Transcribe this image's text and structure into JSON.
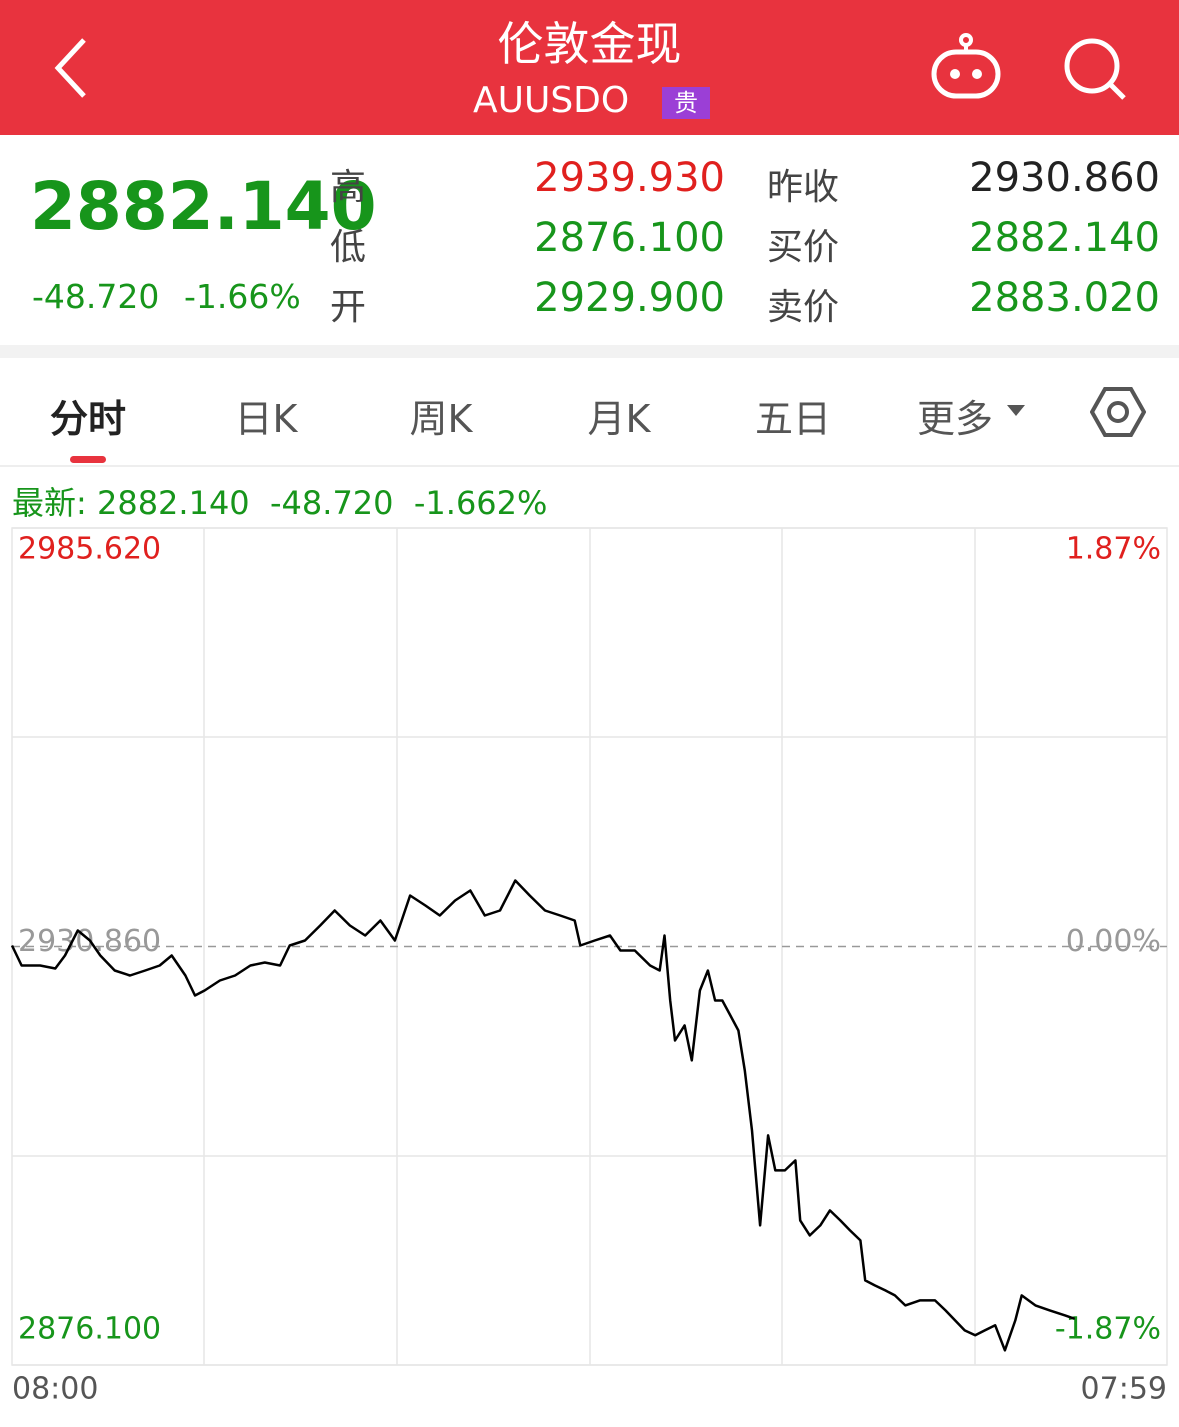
{
  "header": {
    "title": "伦敦金现",
    "code": "AUUSDO",
    "badge": "贵"
  },
  "quote": {
    "price": "2882.140",
    "change": "-48.720",
    "change_percent": "-1.66%",
    "stats": [
      {
        "label": "高",
        "value": "2939.930"
      },
      {
        "label": "低",
        "value": "2876.100"
      },
      {
        "label": "开",
        "value": "2929.900"
      },
      {
        "label": "昨收",
        "value": "2930.860"
      },
      {
        "label": "买价",
        "value": "2882.140"
      },
      {
        "label": "卖价",
        "value": "2883.020"
      }
    ]
  },
  "tabs": [
    "分时",
    "日K",
    "周K",
    "月K",
    "五日",
    "更多"
  ],
  "latest": {
    "label": "最新:",
    "price": "2882.140",
    "change": "-48.720",
    "change_percent": "-1.662%"
  },
  "chart_data": {
    "type": "line",
    "color": "#000000",
    "grid": true,
    "x": [
      0,
      12,
      35,
      54,
      66,
      82,
      97,
      110,
      128,
      147,
      166,
      184,
      199,
      216,
      228,
      240,
      259,
      278,
      297,
      315,
      334,
      346,
      365,
      384,
      402,
      421,
      440,
      459,
      477,
      496,
      515,
      533,
      552,
      571,
      589,
      608,
      627,
      645,
      664,
      683,
      701,
      708,
      726,
      745,
      758,
      776,
      795,
      807,
      813,
      820,
      826,
      838,
      847,
      857,
      867,
      876,
      885,
      895,
      905,
      913,
      922,
      932,
      942,
      951,
      963,
      976,
      982,
      994,
      1007,
      1019,
      1032,
      1044,
      1057,
      1063,
      1075,
      1088,
      1100,
      1113,
      1131,
      1150,
      1163,
      1175,
      1187,
      1200,
      1212,
      1225,
      1237,
      1250,
      1258,
      1275,
      1293,
      1312,
      1324
    ],
    "values": [
      2930.99,
      2928.37,
      2928.37,
      2927.98,
      2929.68,
      2932.95,
      2931.64,
      2929.68,
      2927.72,
      2927.07,
      2927.72,
      2928.37,
      2929.68,
      2927.07,
      2924.45,
      2925.1,
      2926.41,
      2927.07,
      2928.37,
      2928.77,
      2928.37,
      2930.99,
      2931.64,
      2933.61,
      2935.57,
      2933.61,
      2932.3,
      2934.26,
      2931.64,
      2937.53,
      2936.22,
      2934.91,
      2936.88,
      2938.19,
      2934.91,
      2935.57,
      2939.49,
      2937.53,
      2935.57,
      2934.91,
      2934.26,
      2930.99,
      2931.64,
      2932.3,
      2930.34,
      2930.34,
      2928.37,
      2927.72,
      2932.3,
      2923.8,
      2918.56,
      2920.53,
      2915.95,
      2925.1,
      2927.72,
      2923.8,
      2923.8,
      2921.83,
      2919.87,
      2914.64,
      2906.79,
      2894.37,
      2906.14,
      2901.56,
      2901.56,
      2902.87,
      2895.02,
      2893.06,
      2894.37,
      2896.33,
      2895.02,
      2893.71,
      2892.4,
      2887.17,
      2886.52,
      2885.86,
      2885.21,
      2883.9,
      2884.55,
      2884.55,
      2883.25,
      2881.94,
      2880.63,
      2879.98,
      2880.63,
      2881.29,
      2878.02,
      2881.94,
      2885.21,
      2883.9,
      2883.25,
      2882.59,
      2882.14
    ],
    "xlim": [
      0,
      1439
    ],
    "xticks": [
      {
        "value": 0,
        "label": "08:00"
      },
      {
        "value": 1439,
        "label": "07:59"
      }
    ],
    "ylim": [
      2876.1,
      2985.62
    ],
    "yticks": [
      {
        "value": 2985.62,
        "label": "2985.620"
      },
      {
        "value": 2930.86,
        "label": "2930.860"
      },
      {
        "value": 2876.1,
        "label": "2876.100"
      }
    ],
    "y2lim": [
      -1.87,
      1.87
    ],
    "y2ticks": [
      {
        "value": 1.87,
        "label": "1.87%"
      },
      {
        "value": 0,
        "label": "0.00%"
      },
      {
        "value": -1.87,
        "label": "-1.87%"
      }
    ]
  }
}
